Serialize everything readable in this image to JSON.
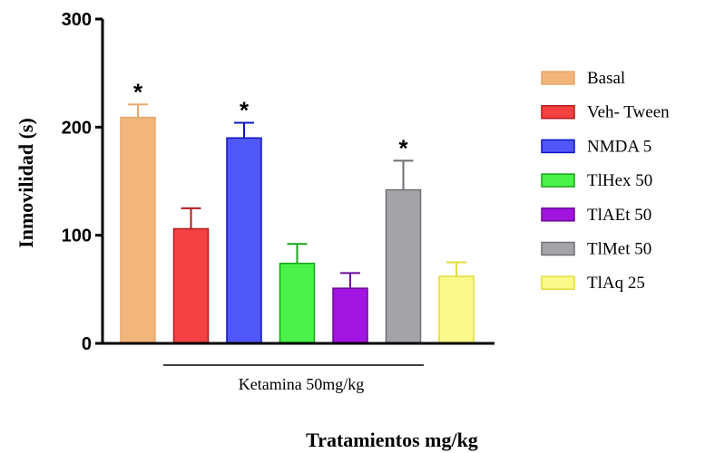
{
  "chart_data": {
    "type": "bar",
    "title": "",
    "ylabel": "Inmovilidad (s)",
    "xlabel": "Tratamientos mg/kg",
    "ylim": [
      0,
      300
    ],
    "yticks": [
      0,
      100,
      200,
      300
    ],
    "group_label": "Ketamina 50mg/kg",
    "legend_position": "right",
    "series": [
      {
        "name": "Basal",
        "value": 209,
        "error": 12,
        "significant": true,
        "significance_mark": "*",
        "color": "#f2b57c",
        "stroke": "#e8a86b"
      },
      {
        "name": "Veh- Tween",
        "value": 106,
        "error": 19,
        "significant": false,
        "significance_mark": "",
        "color": "#f44141",
        "stroke": "#b31a1a"
      },
      {
        "name": "NMDA 5",
        "value": 190,
        "error": 14,
        "significant": true,
        "significance_mark": "*",
        "color": "#5057f7",
        "stroke": "#0f17c4"
      },
      {
        "name": "TlHex 50",
        "value": 74,
        "error": 18,
        "significant": false,
        "significance_mark": "",
        "color": "#4af24a",
        "stroke": "#1aa31a"
      },
      {
        "name": "TlAEt 50",
        "value": 51,
        "error": 14,
        "significant": false,
        "significance_mark": "",
        "color": "#a214e0",
        "stroke": "#6a0a96"
      },
      {
        "name": "TlMet 50",
        "value": 142,
        "error": 27,
        "significant": true,
        "significance_mark": "*",
        "color": "#a3a3a8",
        "stroke": "#6f6f74"
      },
      {
        "name": "TlAq 25",
        "value": 62,
        "error": 13,
        "significant": false,
        "significance_mark": "",
        "color": "#fbf98a",
        "stroke": "#e2de3a"
      }
    ]
  }
}
